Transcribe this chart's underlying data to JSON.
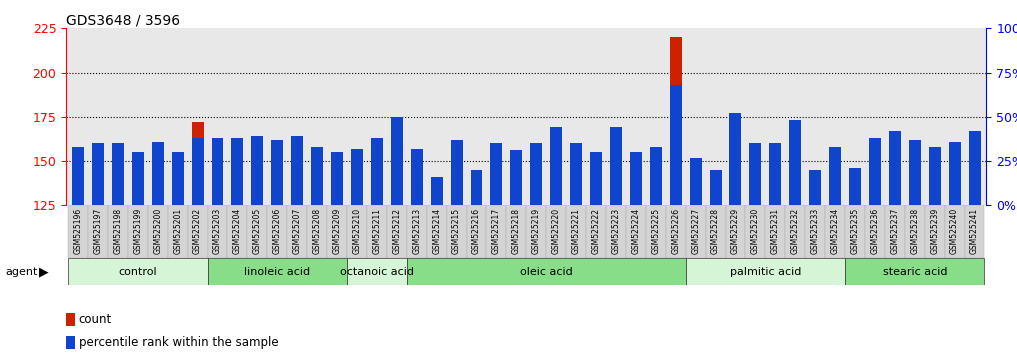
{
  "title": "GDS3648 / 3596",
  "samples": [
    "GSM525196",
    "GSM525197",
    "GSM525198",
    "GSM525199",
    "GSM525200",
    "GSM525201",
    "GSM525202",
    "GSM525203",
    "GSM525204",
    "GSM525205",
    "GSM525206",
    "GSM525207",
    "GSM525208",
    "GSM525209",
    "GSM525210",
    "GSM525211",
    "GSM525212",
    "GSM525213",
    "GSM525214",
    "GSM525215",
    "GSM525216",
    "GSM525217",
    "GSM525218",
    "GSM525219",
    "GSM525220",
    "GSM525221",
    "GSM525222",
    "GSM525223",
    "GSM525224",
    "GSM525225",
    "GSM525226",
    "GSM525227",
    "GSM525228",
    "GSM525229",
    "GSM525230",
    "GSM525231",
    "GSM525232",
    "GSM525233",
    "GSM525234",
    "GSM525235",
    "GSM525236",
    "GSM525237",
    "GSM525238",
    "GSM525239",
    "GSM525240",
    "GSM525241"
  ],
  "count_values": [
    155,
    158,
    157,
    143,
    160,
    147,
    172,
    162,
    160,
    161,
    159,
    159,
    150,
    142,
    150,
    162,
    175,
    148,
    128,
    155,
    138,
    155,
    151,
    155,
    163,
    155,
    148,
    163,
    147,
    152,
    220,
    143,
    145,
    168,
    155,
    155,
    160,
    140,
    155,
    140,
    152,
    162,
    155,
    150,
    153,
    162
  ],
  "percentile_values": [
    33,
    35,
    35,
    30,
    36,
    30,
    38,
    38,
    38,
    39,
    37,
    39,
    33,
    30,
    32,
    38,
    50,
    32,
    16,
    37,
    20,
    35,
    31,
    35,
    44,
    35,
    30,
    44,
    30,
    33,
    68,
    27,
    20,
    52,
    35,
    35,
    48,
    20,
    33,
    21,
    38,
    42,
    37,
    33,
    36,
    42
  ],
  "groups": [
    {
      "label": "control",
      "start": 0,
      "end": 7,
      "color": "#d6f5d6"
    },
    {
      "label": "linoleic acid",
      "start": 7,
      "end": 14,
      "color": "#88dd88"
    },
    {
      "label": "octanoic acid",
      "start": 14,
      "end": 17,
      "color": "#d6f5d6"
    },
    {
      "label": "oleic acid",
      "start": 17,
      "end": 31,
      "color": "#88dd88"
    },
    {
      "label": "palmitic acid",
      "start": 31,
      "end": 39,
      "color": "#d6f5d6"
    },
    {
      "label": "stearic acid",
      "start": 39,
      "end": 46,
      "color": "#88dd88"
    }
  ],
  "ylim_left": [
    125,
    225
  ],
  "ylim_right": [
    0,
    100
  ],
  "yticks_left": [
    125,
    150,
    175,
    200,
    225
  ],
  "yticks_right": [
    0,
    25,
    50,
    75,
    100
  ],
  "bar_color_red": "#cc2200",
  "bar_color_blue": "#1144cc",
  "plot_bg_color": "#e8e8e8",
  "fig_bg_color": "#ffffff",
  "grid_yticks": [
    150,
    175,
    200
  ]
}
